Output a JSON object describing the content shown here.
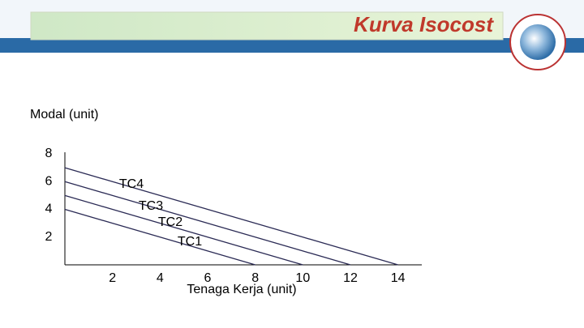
{
  "chart_data": {
    "type": "line",
    "title": "Kurva Isocost",
    "y_label": "Modal (unit)",
    "x_label": "Tenaga Kerja (unit)",
    "x": [
      0,
      2,
      4,
      6,
      8,
      10,
      12,
      14
    ],
    "series": [
      {
        "name": "TC1",
        "color": "#2b2b55",
        "values": [
          4,
          3,
          2,
          1,
          0,
          null,
          null,
          null
        ]
      },
      {
        "name": "TC2",
        "color": "#2b2b55",
        "values": [
          5,
          4,
          3,
          2,
          1,
          0,
          null,
          null
        ]
      },
      {
        "name": "TC3",
        "color": "#2b2b55",
        "values": [
          6,
          5,
          4,
          3,
          2,
          1,
          0,
          null
        ]
      },
      {
        "name": "TC4",
        "color": "#2b2b55",
        "values": [
          7,
          6,
          5,
          4,
          3,
          2,
          1,
          0
        ]
      }
    ],
    "xlim": [
      0,
      15
    ],
    "ylim": [
      0,
      8
    ],
    "xticks": [
      2,
      4,
      6,
      8,
      10,
      12,
      14
    ],
    "yticks": [
      2,
      4,
      6,
      8
    ],
    "grid": false
  }
}
